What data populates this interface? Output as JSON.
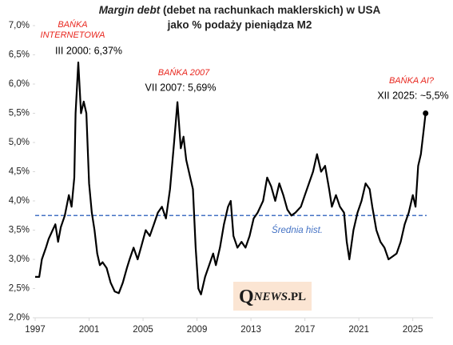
{
  "chart_data": {
    "type": "line",
    "title_emphasis": "Margin debt",
    "title": "(debet na rachunkach maklerskich) w USA",
    "subtitle": "jako % podaży pieniądza M2",
    "xlim": [
      1997,
      2026.5
    ],
    "xticks": [
      1997,
      2001,
      2005,
      2009,
      2013,
      2017,
      2021,
      2025
    ],
    "ylim": [
      2.0,
      7.0
    ],
    "yticks": [
      {
        "value": 2.0,
        "label": "2,0%"
      },
      {
        "value": 2.5,
        "label": "2,5%"
      },
      {
        "value": 3.0,
        "label": "3,0%"
      },
      {
        "value": 3.5,
        "label": "3,5%"
      },
      {
        "value": 4.0,
        "label": "4,0%"
      },
      {
        "value": 4.5,
        "label": "4,5%"
      },
      {
        "value": 5.0,
        "label": "5,0%"
      },
      {
        "value": 5.5,
        "label": "5,5%"
      },
      {
        "value": 6.0,
        "label": "6,0%"
      },
      {
        "value": 6.5,
        "label": "6,5%"
      },
      {
        "value": 7.0,
        "label": "7,0%"
      }
    ],
    "grid": false,
    "mean": {
      "value": 3.75,
      "label": "Średnia hist.",
      "color": "#4472c4"
    },
    "x": [
      1997.0,
      1997.3,
      1997.5,
      1997.8,
      1998.0,
      1998.3,
      1998.5,
      1998.7,
      1998.9,
      1999.2,
      1999.5,
      1999.7,
      1999.9,
      2000.0,
      2000.2,
      2000.4,
      2000.6,
      2000.8,
      2001.0,
      2001.2,
      2001.4,
      2001.6,
      2001.8,
      2002.0,
      2002.3,
      2002.6,
      2002.9,
      2003.2,
      2003.5,
      2003.8,
      2004.0,
      2004.3,
      2004.6,
      2004.9,
      2005.2,
      2005.5,
      2005.8,
      2006.1,
      2006.4,
      2006.7,
      2007.0,
      2007.3,
      2007.55,
      2007.8,
      2008.0,
      2008.2,
      2008.5,
      2008.7,
      2008.9,
      2009.1,
      2009.3,
      2009.6,
      2009.9,
      2010.2,
      2010.4,
      2010.7,
      2011.0,
      2011.3,
      2011.5,
      2011.7,
      2012.0,
      2012.3,
      2012.6,
      2012.9,
      2013.2,
      2013.5,
      2013.9,
      2014.2,
      2014.5,
      2014.8,
      2015.1,
      2015.4,
      2015.7,
      2016.0,
      2016.3,
      2016.7,
      2017.0,
      2017.3,
      2017.6,
      2017.9,
      2018.2,
      2018.5,
      2018.8,
      2019.0,
      2019.3,
      2019.6,
      2019.9,
      2020.1,
      2020.3,
      2020.6,
      2020.9,
      2021.2,
      2021.5,
      2021.8,
      2022.0,
      2022.3,
      2022.6,
      2022.9,
      2023.2,
      2023.5,
      2023.8,
      2024.1,
      2024.4,
      2024.7,
      2025.0,
      2025.2,
      2025.4,
      2025.6,
      2025.8,
      2025.95
    ],
    "series": [
      {
        "name": "Margin debt / M2",
        "color": "#000000",
        "values": [
          2.7,
          2.7,
          3.0,
          3.2,
          3.35,
          3.5,
          3.6,
          3.3,
          3.55,
          3.75,
          4.1,
          3.9,
          4.4,
          5.5,
          6.37,
          5.5,
          5.7,
          5.5,
          4.3,
          3.8,
          3.5,
          3.1,
          2.9,
          2.95,
          2.85,
          2.6,
          2.45,
          2.42,
          2.6,
          2.85,
          3.0,
          3.2,
          3.0,
          3.25,
          3.5,
          3.4,
          3.6,
          3.8,
          3.9,
          3.7,
          4.2,
          5.0,
          5.69,
          4.9,
          5.1,
          4.7,
          4.4,
          4.2,
          3.2,
          2.5,
          2.4,
          2.7,
          2.9,
          3.1,
          2.9,
          3.2,
          3.6,
          3.9,
          4.0,
          3.4,
          3.2,
          3.3,
          3.2,
          3.4,
          3.7,
          3.8,
          4.0,
          4.4,
          4.25,
          4.0,
          4.3,
          4.1,
          3.85,
          3.75,
          3.8,
          3.9,
          4.1,
          4.3,
          4.5,
          4.8,
          4.5,
          4.6,
          4.2,
          3.9,
          4.1,
          3.9,
          3.8,
          3.3,
          3.0,
          3.5,
          3.8,
          4.0,
          4.3,
          4.2,
          3.9,
          3.5,
          3.3,
          3.2,
          3.0,
          3.05,
          3.1,
          3.3,
          3.6,
          3.8,
          4.1,
          3.9,
          4.6,
          4.8,
          5.2,
          5.5
        ]
      }
    ],
    "annotations": [
      {
        "lines": [
          "BAŃKA",
          "INTERNETOWA"
        ],
        "color": "#e8261e"
      },
      {
        "lines": [
          "III 2000: 6,37%"
        ],
        "color": "#000000"
      },
      {
        "lines": [
          "BAŃKA 2007"
        ],
        "color": "#e8261e"
      },
      {
        "lines": [
          "VII 2007: 5,69%"
        ],
        "color": "#000000"
      },
      {
        "lines": [
          "BAŃKA AI?"
        ],
        "color": "#e8261e"
      },
      {
        "lines": [
          "XII 2025: ~5,5%"
        ],
        "color": "#000000"
      }
    ],
    "logo": [
      "Q",
      "NEWS",
      ".PL"
    ]
  }
}
